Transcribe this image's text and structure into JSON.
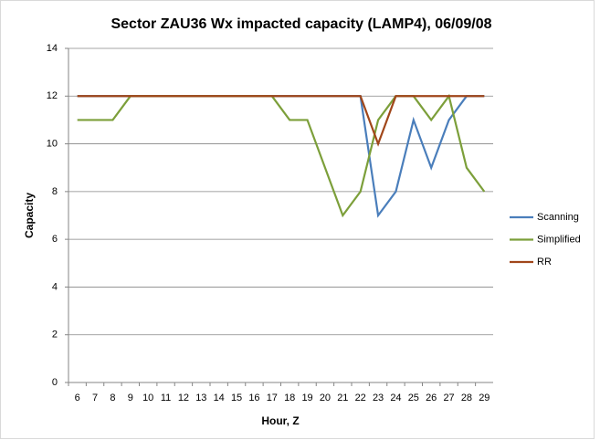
{
  "chart_data": {
    "type": "line",
    "title": "Sector ZAU36 Wx impacted capacity (LAMP4), 06/09/08",
    "x_label": "Hour, Z",
    "y_label": "Capacity",
    "categories": [
      "6",
      "7",
      "8",
      "9",
      "10",
      "11",
      "12",
      "13",
      "14",
      "15",
      "16",
      "17",
      "18",
      "19",
      "20",
      "21",
      "22",
      "23",
      "24",
      "25",
      "26",
      "27",
      "28",
      "29"
    ],
    "series": [
      {
        "name": "Scanning",
        "color": "#4a7ebb",
        "values": [
          12,
          12,
          12,
          12,
          12,
          12,
          12,
          12,
          12,
          12,
          12,
          12,
          12,
          12,
          12,
          12,
          12,
          7,
          8,
          11,
          9,
          11,
          12,
          12
        ]
      },
      {
        "name": "Simplified",
        "color": "#7c9f3a",
        "values": [
          11,
          11,
          11,
          12,
          12,
          12,
          12,
          12,
          12,
          12,
          12,
          12,
          11,
          11,
          9,
          7,
          8,
          11,
          12,
          12,
          11,
          12,
          9,
          8
        ]
      },
      {
        "name": "RR",
        "color": "#a0461a",
        "values": [
          12,
          12,
          12,
          12,
          12,
          12,
          12,
          12,
          12,
          12,
          12,
          12,
          12,
          12,
          12,
          12,
          12,
          10,
          12,
          12,
          12,
          12,
          12,
          12
        ]
      }
    ],
    "ylim": [
      0,
      14
    ],
    "yticks": [
      0,
      2,
      4,
      6,
      8,
      10,
      12,
      14
    ],
    "grid": true,
    "legend": "right"
  }
}
